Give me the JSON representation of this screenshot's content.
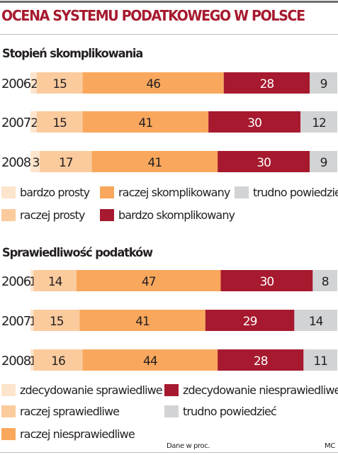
{
  "title": "OCENA SYSTEMU PODATKOWEGO W POLSCE",
  "footer": {
    "source": "Dane w proc.",
    "author": "MC"
  },
  "colors": {
    "very_light": "#fde4cc",
    "light": "#fbcb9d",
    "orange": "#f9a75c",
    "crimson": "#a6192e",
    "grey": "#d1d3d4",
    "title": "#a6192e"
  },
  "chart_data": [
    {
      "type": "bar",
      "orientation": "horizontal",
      "stacked": true,
      "title": "Stopień skomplikowania",
      "categories": [
        "2006",
        "2007",
        "2008"
      ],
      "series": [
        {
          "name": "bardzo prosty",
          "color": "#fde4cc",
          "values": [
            2,
            2,
            3
          ]
        },
        {
          "name": "raczej prosty",
          "color": "#fbcb9d",
          "values": [
            15,
            15,
            17
          ]
        },
        {
          "name": "raczej skomplikowany",
          "color": "#f9a75c",
          "values": [
            46,
            41,
            41
          ]
        },
        {
          "name": "bardzo skomplikowany",
          "color": "#a6192e",
          "values": [
            28,
            30,
            30
          ]
        },
        {
          "name": "trudno powiedzieć",
          "color": "#d1d3d4",
          "values": [
            9,
            12,
            9
          ]
        }
      ],
      "legend": {
        "placement": "below",
        "rows": [
          [
            "bardzo prosty",
            "raczej skomplikowany",
            "trudno powiedzieć"
          ],
          [
            "raczej prosty",
            "bardzo skomplikowany"
          ]
        ]
      }
    },
    {
      "type": "bar",
      "orientation": "horizontal",
      "stacked": true,
      "title": "Sprawiedliwość podatków",
      "categories": [
        "2006",
        "2007",
        "2008"
      ],
      "series": [
        {
          "name": "zdecydowanie sprawiedliwe",
          "color": "#fde4cc",
          "values": [
            1,
            1,
            1
          ]
        },
        {
          "name": "raczej sprawiedliwe",
          "color": "#fbcb9d",
          "values": [
            14,
            15,
            16
          ]
        },
        {
          "name": "raczej niesprawiedliwe",
          "color": "#f9a75c",
          "values": [
            47,
            41,
            44
          ]
        },
        {
          "name": "zdecydowanie niesprawiedliwe",
          "color": "#a6192e",
          "values": [
            30,
            29,
            28
          ]
        },
        {
          "name": "trudno powiedzieć",
          "color": "#d1d3d4",
          "values": [
            8,
            14,
            11
          ]
        }
      ],
      "legend": {
        "placement": "below",
        "rows": [
          [
            "zdecydowanie sprawiedliwe",
            "zdecydowanie niesprawiedliwe"
          ],
          [
            "raczej sprawiedliwe",
            "trudno powiedzieć"
          ],
          [
            "raczej niesprawiedliwe"
          ]
        ]
      }
    }
  ]
}
